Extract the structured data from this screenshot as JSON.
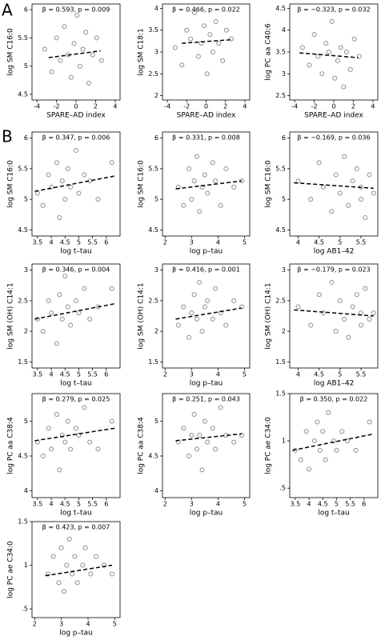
{
  "panel_labels": [
    "A",
    "B"
  ],
  "chart_data": [
    {
      "type": "scatter",
      "title": "β = 0.593, p = 0.009",
      "x_label": "SPARE–AD index",
      "y_label": "log SM C16:0",
      "xlim": [
        -4.5,
        4.5
      ],
      "xticks": [
        -4,
        -2,
        0,
        2,
        4
      ],
      "ylim": [
        4.4,
        6.1
      ],
      "yticks": [
        4.5,
        5,
        5.5,
        6
      ],
      "color": "#8c8c8c",
      "fit_color": "#000000",
      "x": [
        -3.2,
        -2.5,
        -2,
        -1.6,
        -1.2,
        -0.8,
        -0.5,
        -0.2,
        0.1,
        0.4,
        0.7,
        1,
        1.3,
        1.7,
        2.1,
        2.6
      ],
      "y": [
        5.3,
        4.9,
        5.5,
        5.1,
        5.7,
        5.2,
        4.8,
        5.4,
        5.9,
        5.0,
        5.3,
        5.6,
        4.7,
        5.2,
        5.5,
        5.1
      ],
      "fit_x": [
        -2.8,
        2.5
      ],
      "fit_y": [
        5.15,
        5.27
      ]
    },
    {
      "type": "scatter",
      "title": "β = 0.466, p = 0.022",
      "x_label": "SPARE–AD index",
      "y_label": "log SM C18:1",
      "xlim": [
        -4.5,
        4.5
      ],
      "xticks": [
        -4,
        -2,
        0,
        2,
        4
      ],
      "ylim": [
        1.9,
        4.1
      ],
      "yticks": [
        2,
        2.5,
        3,
        3.5,
        4
      ],
      "color": "#8c8c8c",
      "fit_color": "#000000",
      "x": [
        -3.2,
        -2.5,
        -2,
        -1.6,
        -1.2,
        -0.8,
        -0.5,
        -0.2,
        0.1,
        0.4,
        0.7,
        1,
        1.3,
        1.7,
        2.1,
        2.6
      ],
      "y": [
        3.1,
        2.7,
        3.5,
        3.3,
        3.9,
        2.9,
        3.2,
        3.6,
        2.5,
        3.4,
        3.0,
        3.7,
        3.2,
        2.8,
        3.5,
        3.3
      ],
      "fit_x": [
        -2.5,
        2.5
      ],
      "fit_y": [
        3.2,
        3.28
      ]
    },
    {
      "type": "scatter",
      "title": "β = −0.323, p = 0.032",
      "x_label": "SPARE–AD index",
      "y_label": "log PC aa C40:6",
      "xlim": [
        -4.5,
        4.5
      ],
      "xticks": [
        -4,
        -2,
        0,
        2,
        4
      ],
      "ylim": [
        2.4,
        4.6
      ],
      "yticks": [
        2.5,
        3,
        3.5,
        4,
        4.5
      ],
      "color": "#8c8c8c",
      "fit_color": "#000000",
      "x": [
        -3.2,
        -2.5,
        -2,
        -1.6,
        -1.2,
        -0.8,
        -0.5,
        -0.2,
        0.1,
        0.4,
        0.7,
        1,
        1.3,
        1.7,
        2.1,
        2.6
      ],
      "y": [
        3.6,
        3.2,
        3.9,
        3.4,
        3.0,
        3.7,
        3.5,
        4.2,
        2.9,
        3.3,
        3.6,
        2.7,
        3.5,
        3.1,
        3.8,
        3.4
      ],
      "fit_x": [
        -3.5,
        2.5
      ],
      "fit_y": [
        3.48,
        3.37
      ]
    },
    {
      "type": "scatter",
      "title": "β = 0.347, p = 0.006",
      "x_label": "log t–tau",
      "y_label": "log SM C16:0",
      "xlim": [
        3.3,
        6.5
      ],
      "xticks": [
        3.5,
        4,
        4.5,
        5,
        5.5,
        6
      ],
      "ylim": [
        4.4,
        6.1
      ],
      "yticks": [
        4.5,
        5,
        5.5,
        6
      ],
      "color": "#8c8c8c",
      "fit_color": "#000000",
      "x": [
        3.5,
        3.7,
        3.9,
        4.0,
        4.2,
        4.3,
        4.4,
        4.5,
        4.6,
        4.7,
        4.9,
        5.0,
        5.2,
        5.4,
        5.7,
        6.2
      ],
      "y": [
        5.1,
        4.9,
        5.4,
        5.2,
        5.6,
        4.7,
        5.3,
        5.0,
        5.5,
        5.2,
        5.8,
        5.1,
        5.4,
        5.3,
        5.0,
        5.6
      ],
      "fit_x": [
        3.4,
        6.3
      ],
      "fit_y": [
        5.13,
        5.38
      ]
    },
    {
      "type": "scatter",
      "title": "β = 0.331, p = 0.008",
      "x_label": "log p–tau",
      "y_label": "log SM C16:0",
      "xlim": [
        1.9,
        5.2
      ],
      "xticks": [
        2,
        3,
        4,
        5
      ],
      "ylim": [
        4.4,
        6.1
      ],
      "yticks": [
        4.5,
        5,
        5.5,
        6
      ],
      "color": "#8c8c8c",
      "fit_color": "#000000",
      "x": [
        2.5,
        2.7,
        2.9,
        3.0,
        3.1,
        3.2,
        3.3,
        3.4,
        3.5,
        3.6,
        3.8,
        3.9,
        4.1,
        4.3,
        4.6,
        4.9
      ],
      "y": [
        5.2,
        4.9,
        5.5,
        5.0,
        5.3,
        5.7,
        4.8,
        5.2,
        5.4,
        5.1,
        5.6,
        5.3,
        4.9,
        5.5,
        5.2,
        5.3
      ],
      "fit_x": [
        2.4,
        4.9
      ],
      "fit_y": [
        5.17,
        5.3
      ]
    },
    {
      "type": "scatter",
      "title": "β = −0.169, p = 0.036",
      "x_label": "log AB1–42",
      "y_label": "log SM C16:0",
      "xlim": [
        3.8,
        5.9
      ],
      "xticks": [
        4,
        4.5,
        5,
        5.5
      ],
      "ylim": [
        4.4,
        6.1
      ],
      "yticks": [
        4.5,
        5,
        5.5,
        6
      ],
      "color": "#8c8c8c",
      "fit_color": "#000000",
      "x": [
        4.0,
        4.3,
        4.5,
        4.6,
        4.8,
        4.9,
        5.0,
        5.1,
        5.2,
        5.3,
        5.4,
        5.5,
        5.5,
        5.6,
        5.7,
        5.8
      ],
      "y": [
        5.3,
        5.0,
        5.6,
        5.2,
        4.8,
        5.4,
        5.1,
        5.7,
        4.9,
        5.3,
        5.5,
        5.0,
        5.2,
        4.7,
        5.4,
        5.1
      ],
      "fit_x": [
        3.9,
        5.8
      ],
      "fit_y": [
        5.27,
        5.18
      ]
    },
    {
      "type": "scatter",
      "title": "β = 0.346, p = 0.004",
      "x_label": "log t–tau",
      "y_label": "log SM (OH) C14:1",
      "xlim": [
        3.3,
        6.5
      ],
      "xticks": [
        3.5,
        4,
        4.5,
        5,
        5.5,
        6
      ],
      "ylim": [
        1.4,
        3.1
      ],
      "yticks": [
        1.5,
        2,
        2.5,
        3
      ],
      "color": "#8c8c8c",
      "fit_color": "#000000",
      "x": [
        3.5,
        3.7,
        3.9,
        4.0,
        4.2,
        4.3,
        4.4,
        4.5,
        4.6,
        4.7,
        4.9,
        5.0,
        5.2,
        5.4,
        5.7,
        6.2
      ],
      "y": [
        2.2,
        2.0,
        2.5,
        2.3,
        1.8,
        2.6,
        2.2,
        2.9,
        2.4,
        2.1,
        2.5,
        2.3,
        2.7,
        2.2,
        2.4,
        2.7
      ],
      "fit_x": [
        3.4,
        6.3
      ],
      "fit_y": [
        2.2,
        2.45
      ]
    },
    {
      "type": "scatter",
      "title": "β = 0.416, p = 0.001",
      "x_label": "log p–tau",
      "y_label": "log SM (OH) C14:1",
      "xlim": [
        1.9,
        5.2
      ],
      "xticks": [
        2,
        3,
        4,
        5
      ],
      "ylim": [
        1.4,
        3.1
      ],
      "yticks": [
        1.5,
        2,
        2.5,
        3
      ],
      "color": "#8c8c8c",
      "fit_color": "#000000",
      "x": [
        2.5,
        2.7,
        2.9,
        3.0,
        3.1,
        3.2,
        3.3,
        3.4,
        3.5,
        3.6,
        3.8,
        3.9,
        4.1,
        4.3,
        4.6,
        4.9
      ],
      "y": [
        2.1,
        2.4,
        1.9,
        2.3,
        2.6,
        2.2,
        2.8,
        2.0,
        2.4,
        2.5,
        2.2,
        2.7,
        2.3,
        2.1,
        2.5,
        2.4
      ],
      "fit_x": [
        2.4,
        4.9
      ],
      "fit_y": [
        2.2,
        2.38
      ]
    },
    {
      "type": "scatter",
      "title": "β = −0.179, p = 0.023",
      "x_label": "log AB1–42",
      "y_label": "log SM (OH) C14:1",
      "xlim": [
        3.8,
        5.9
      ],
      "xticks": [
        4,
        4.5,
        5,
        5.5
      ],
      "ylim": [
        1.4,
        3.1
      ],
      "yticks": [
        1.5,
        2,
        2.5,
        3
      ],
      "color": "#8c8c8c",
      "fit_color": "#000000",
      "x": [
        4.0,
        4.3,
        4.5,
        4.6,
        4.8,
        4.9,
        5.0,
        5.1,
        5.2,
        5.3,
        5.4,
        5.5,
        5.5,
        5.6,
        5.7,
        5.8
      ],
      "y": [
        2.4,
        2.1,
        2.6,
        2.3,
        2.8,
        2.0,
        2.5,
        2.2,
        1.9,
        2.4,
        2.6,
        2.1,
        2.3,
        2.7,
        2.2,
        2.3
      ],
      "fit_x": [
        3.9,
        5.8
      ],
      "fit_y": [
        2.35,
        2.25
      ]
    },
    {
      "type": "scatter",
      "title": "β = 0.279, p = 0.025",
      "x_label": "log t–tau",
      "y_label": "log PC aa C38:4",
      "xlim": [
        3.3,
        6.5
      ],
      "xticks": [
        3.5,
        4,
        4.5,
        5,
        5.5,
        6
      ],
      "ylim": [
        3.9,
        5.4
      ],
      "yticks": [
        4,
        4.5,
        5
      ],
      "color": "#8c8c8c",
      "fit_color": "#000000",
      "x": [
        3.5,
        3.7,
        3.9,
        4.0,
        4.2,
        4.3,
        4.4,
        4.5,
        4.6,
        4.7,
        4.9,
        5.0,
        5.2,
        5.4,
        5.7,
        6.2
      ],
      "y": [
        4.7,
        4.5,
        4.9,
        4.6,
        5.1,
        4.3,
        4.8,
        4.7,
        5.0,
        4.6,
        4.9,
        4.8,
        5.2,
        4.7,
        4.6,
        5.0
      ],
      "fit_x": [
        3.4,
        6.3
      ],
      "fit_y": [
        4.72,
        4.9
      ]
    },
    {
      "type": "scatter",
      "title": "β = 0.251, p = 0.043",
      "x_label": "log p–tau",
      "y_label": "log PC aa C38:4",
      "xlim": [
        1.9,
        5.2
      ],
      "xticks": [
        2,
        3,
        4,
        5
      ],
      "ylim": [
        3.9,
        5.4
      ],
      "yticks": [
        4,
        4.5,
        5
      ],
      "color": "#8c8c8c",
      "fit_color": "#000000",
      "x": [
        2.5,
        2.7,
        2.9,
        3.0,
        3.1,
        3.2,
        3.3,
        3.4,
        3.5,
        3.6,
        3.8,
        3.9,
        4.1,
        4.3,
        4.6,
        4.9
      ],
      "y": [
        4.7,
        4.9,
        4.5,
        4.8,
        5.1,
        4.6,
        4.8,
        4.3,
        5.0,
        4.7,
        4.9,
        4.6,
        5.2,
        4.8,
        4.7,
        4.8
      ],
      "fit_x": [
        2.4,
        4.9
      ],
      "fit_y": [
        4.72,
        4.82
      ]
    },
    {
      "type": "scatter",
      "title": "β = 0.350, p = 0.022",
      "x_label": "log t–tau",
      "y_label": "log PC ae C34:0",
      "xlim": [
        3.3,
        6.5
      ],
      "xticks": [
        3.5,
        4,
        4.5,
        5,
        5.5,
        6
      ],
      "ylim": [
        0.4,
        1.5
      ],
      "yticks": [
        {
          "value": 0.5,
          "label": ".5"
        },
        1,
        1.5
      ],
      "color": "#8c8c8c",
      "fit_color": "#000000",
      "x": [
        3.5,
        3.7,
        3.9,
        4.0,
        4.2,
        4.3,
        4.4,
        4.5,
        4.6,
        4.7,
        4.9,
        5.0,
        5.2,
        5.4,
        5.7,
        6.2
      ],
      "y": [
        0.9,
        0.8,
        1.1,
        0.7,
        1.0,
        1.2,
        0.9,
        1.1,
        0.8,
        1.3,
        1.0,
        0.9,
        1.1,
        1.0,
        0.9,
        1.2
      ],
      "fit_x": [
        3.4,
        6.3
      ],
      "fit_y": [
        0.9,
        1.07
      ]
    },
    {
      "type": "scatter",
      "title": "β = 0.423, p = 0.007",
      "x_label": "log p–tau",
      "y_label": "log PC ae C34:0",
      "xlim": [
        1.9,
        5.2
      ],
      "xticks": [
        2,
        3,
        4,
        5
      ],
      "ylim": [
        0.4,
        1.5
      ],
      "yticks": [
        {
          "value": 0.5,
          "label": ".5"
        },
        1,
        1.5
      ],
      "color": "#8c8c8c",
      "fit_color": "#000000",
      "x": [
        2.5,
        2.7,
        2.9,
        3.0,
        3.1,
        3.2,
        3.3,
        3.4,
        3.5,
        3.6,
        3.8,
        3.9,
        4.1,
        4.3,
        4.6,
        4.9
      ],
      "y": [
        0.9,
        1.1,
        0.8,
        1.2,
        0.7,
        1.0,
        1.3,
        0.9,
        1.1,
        0.8,
        1.0,
        1.2,
        0.9,
        1.1,
        1.0,
        0.9
      ],
      "fit_x": [
        2.4,
        4.9
      ],
      "fit_y": [
        0.88,
        1.0
      ]
    }
  ]
}
